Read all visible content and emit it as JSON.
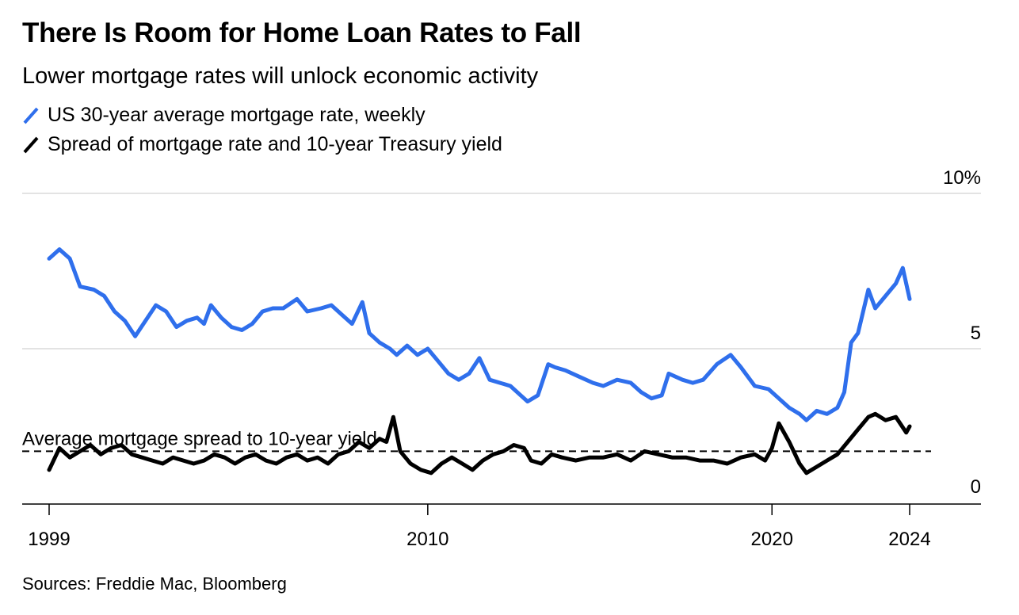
{
  "header": {
    "title": "There Is Room for Home Loan Rates to Fall",
    "subtitle": "Lower mortgage rates will unlock economic activity"
  },
  "legend": [
    {
      "label": "US 30-year average mortgage rate, weekly",
      "color": "#2f6fec"
    },
    {
      "label": "Spread of mortgage rate and 10-year Treasury yield",
      "color": "#000000"
    }
  ],
  "footer": {
    "source": "Sources: Freddie Mac, Bloomberg"
  },
  "chart_data": {
    "type": "line",
    "title": "There Is Room for Home Loan Rates to Fall",
    "subtitle": "Lower mortgage rates will unlock economic activity",
    "xlabel": "",
    "ylabel": "",
    "xlim": [
      1999.0,
      2025.0
    ],
    "ylim": [
      0,
      10
    ],
    "x_ticks": [
      1999,
      2010,
      2020,
      2024
    ],
    "x_tick_labels": [
      "1999",
      "2010",
      "2020",
      "2024"
    ],
    "y_ticks": [
      0,
      5,
      10
    ],
    "y_tick_labels": [
      "0",
      "5",
      "10%"
    ],
    "grid": "horizontal",
    "reference_line": {
      "value": 1.7,
      "label": "Average mortgage spread to 10-year yield",
      "style": "dashed"
    },
    "series": [
      {
        "name": "US 30-year average mortgage rate, weekly",
        "color": "#2f6fec",
        "x": [
          1999.0,
          1999.3,
          1999.6,
          1999.9,
          2000.3,
          2000.6,
          2000.9,
          2001.2,
          2001.5,
          2001.8,
          2002.1,
          2002.4,
          2002.7,
          2003.0,
          2003.3,
          2003.5,
          2003.7,
          2004.0,
          2004.3,
          2004.6,
          2004.9,
          2005.2,
          2005.5,
          2005.8,
          2006.2,
          2006.5,
          2006.9,
          2007.2,
          2007.5,
          2007.8,
          2008.1,
          2008.3,
          2008.6,
          2008.9,
          2009.1,
          2009.4,
          2009.7,
          2010.0,
          2010.3,
          2010.6,
          2010.9,
          2011.2,
          2011.5,
          2011.8,
          2012.1,
          2012.4,
          2012.7,
          2012.9,
          2013.2,
          2013.5,
          2013.7,
          2014.0,
          2014.4,
          2014.8,
          2015.1,
          2015.5,
          2015.9,
          2016.2,
          2016.5,
          2016.8,
          2017.0,
          2017.4,
          2017.7,
          2018.0,
          2018.4,
          2018.8,
          2019.1,
          2019.5,
          2019.9,
          2020.2,
          2020.5,
          2020.8,
          2021.0,
          2021.3,
          2021.6,
          2021.9,
          2022.1,
          2022.3,
          2022.5,
          2022.8,
          2023.0,
          2023.3,
          2023.6,
          2023.8,
          2024.0
        ],
        "values": [
          7.9,
          8.2,
          7.9,
          7.0,
          6.9,
          6.7,
          6.2,
          5.9,
          5.4,
          5.9,
          6.4,
          6.2,
          5.7,
          5.9,
          6.0,
          5.8,
          6.4,
          6.0,
          5.7,
          5.6,
          5.8,
          6.2,
          6.3,
          6.3,
          6.6,
          6.2,
          6.3,
          6.4,
          6.1,
          5.8,
          6.5,
          5.5,
          5.2,
          5.0,
          4.8,
          5.1,
          4.8,
          5.0,
          4.6,
          4.2,
          4.0,
          4.2,
          4.7,
          4.0,
          3.9,
          3.8,
          3.5,
          3.3,
          3.5,
          4.5,
          4.4,
          4.3,
          4.1,
          3.9,
          3.8,
          4.0,
          3.9,
          3.6,
          3.4,
          3.5,
          4.2,
          4.0,
          3.9,
          4.0,
          4.5,
          4.8,
          4.4,
          3.8,
          3.7,
          3.4,
          3.1,
          2.9,
          2.7,
          3.0,
          2.9,
          3.1,
          3.6,
          5.2,
          5.5,
          6.9,
          6.3,
          6.7,
          7.1,
          7.6,
          6.6
        ],
        "bind": "chart_data.series.0.name"
      },
      {
        "name": "Spread of mortgage rate and 10-year Treasury yield",
        "color": "#000000",
        "x": [
          1999.0,
          1999.3,
          1999.6,
          1999.9,
          2000.2,
          2000.5,
          2000.8,
          2001.1,
          2001.4,
          2001.7,
          2002.0,
          2002.3,
          2002.6,
          2002.9,
          2003.2,
          2003.5,
          2003.8,
          2004.1,
          2004.4,
          2004.7,
          2005.0,
          2005.3,
          2005.6,
          2005.9,
          2006.2,
          2006.5,
          2006.8,
          2007.1,
          2007.4,
          2007.7,
          2008.0,
          2008.3,
          2008.6,
          2008.8,
          2009.0,
          2009.2,
          2009.5,
          2009.8,
          2010.1,
          2010.4,
          2010.7,
          2011.0,
          2011.3,
          2011.6,
          2011.9,
          2012.2,
          2012.5,
          2012.8,
          2013.0,
          2013.3,
          2013.6,
          2013.9,
          2014.3,
          2014.7,
          2015.1,
          2015.5,
          2015.9,
          2016.3,
          2016.7,
          2017.1,
          2017.5,
          2017.9,
          2018.3,
          2018.7,
          2019.1,
          2019.5,
          2019.8,
          2020.0,
          2020.2,
          2020.5,
          2020.8,
          2021.0,
          2021.3,
          2021.6,
          2021.9,
          2022.2,
          2022.5,
          2022.8,
          2023.0,
          2023.3,
          2023.6,
          2023.9,
          2024.0
        ],
        "values": [
          1.1,
          1.8,
          1.5,
          1.7,
          1.9,
          1.6,
          1.8,
          1.9,
          1.6,
          1.5,
          1.4,
          1.3,
          1.5,
          1.4,
          1.3,
          1.4,
          1.6,
          1.5,
          1.3,
          1.5,
          1.6,
          1.4,
          1.3,
          1.5,
          1.6,
          1.4,
          1.5,
          1.3,
          1.6,
          1.7,
          2.0,
          1.8,
          2.1,
          2.0,
          2.8,
          1.7,
          1.3,
          1.1,
          1.0,
          1.3,
          1.5,
          1.3,
          1.1,
          1.4,
          1.6,
          1.7,
          1.9,
          1.8,
          1.4,
          1.3,
          1.6,
          1.5,
          1.4,
          1.5,
          1.5,
          1.6,
          1.4,
          1.7,
          1.6,
          1.5,
          1.5,
          1.4,
          1.4,
          1.3,
          1.5,
          1.6,
          1.4,
          1.8,
          2.6,
          2.0,
          1.3,
          1.0,
          1.2,
          1.4,
          1.6,
          2.0,
          2.4,
          2.8,
          2.9,
          2.7,
          2.8,
          2.3,
          2.5
        ],
        "bind": "chart_data.series.1.name"
      }
    ]
  }
}
